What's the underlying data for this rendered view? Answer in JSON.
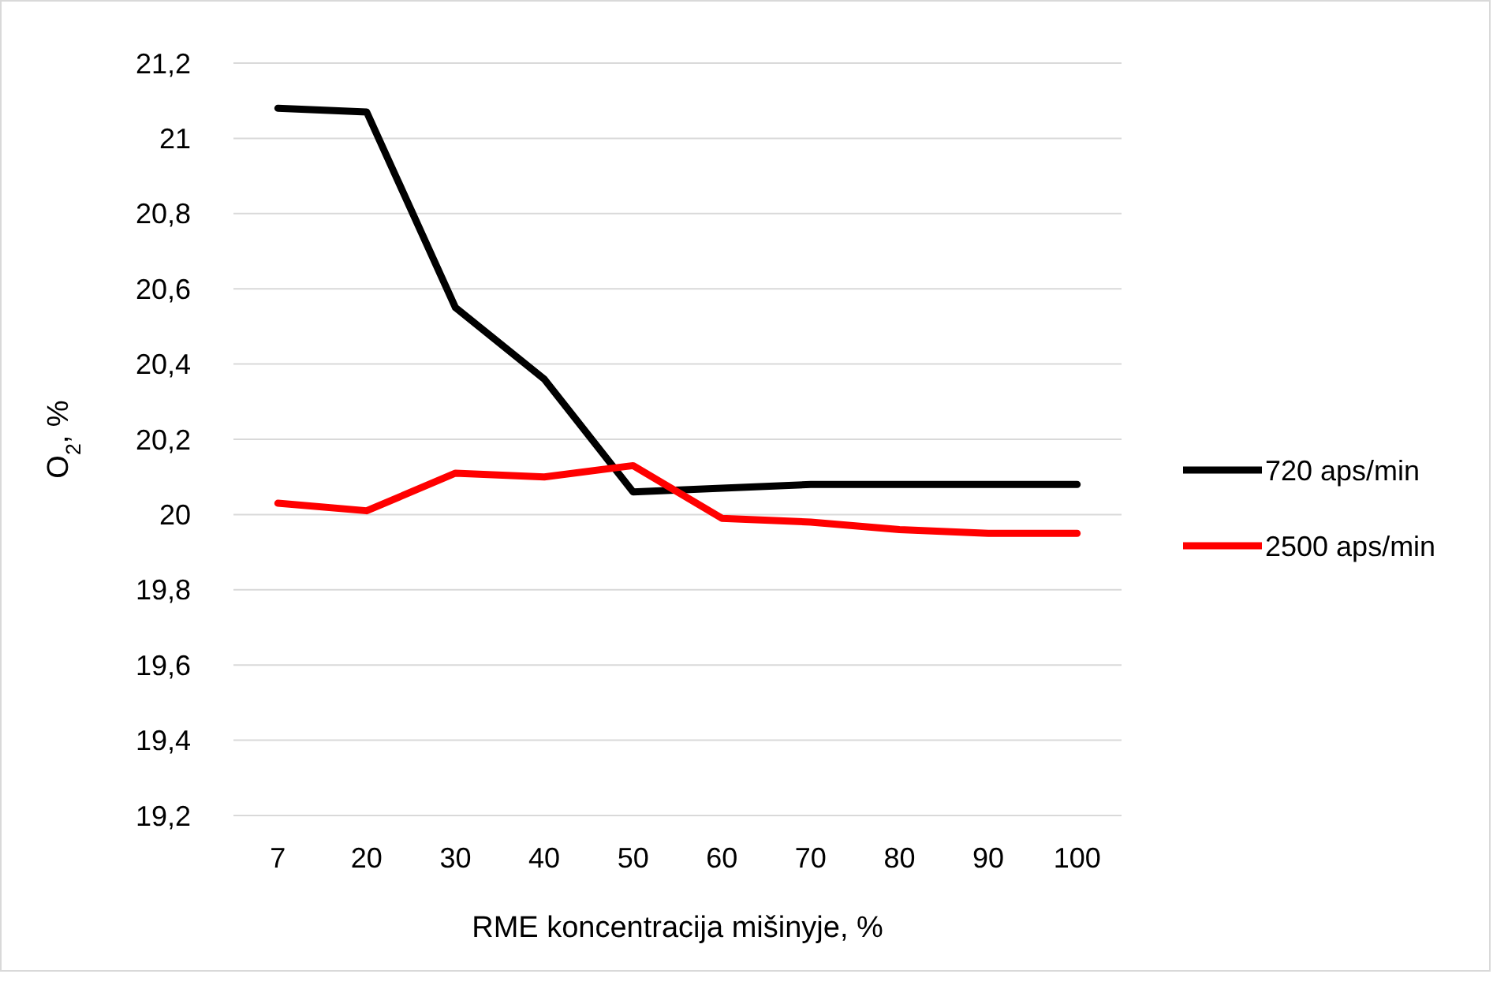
{
  "chart_data": {
    "type": "line",
    "xlabel": "RME koncentracija mišinyje, %",
    "ylabel": "O$_{2}$, %",
    "categories": [
      "7",
      "20",
      "30",
      "40",
      "50",
      "60",
      "70",
      "80",
      "90",
      "100"
    ],
    "series": [
      {
        "name": "720 aps/min",
        "color": "#000000",
        "values": [
          21.08,
          21.07,
          20.55,
          20.36,
          20.06,
          20.07,
          20.08,
          20.08,
          20.08,
          20.08
        ]
      },
      {
        "name": "2500 aps/min",
        "color": "#ff0000",
        "values": [
          20.03,
          20.01,
          20.11,
          20.1,
          20.13,
          19.99,
          19.98,
          19.96,
          19.95,
          19.95
        ]
      }
    ],
    "ylim": [
      19.2,
      21.2
    ],
    "yticks": [
      {
        "value": 19.2,
        "label": "19,2"
      },
      {
        "value": 19.4,
        "label": "19,4"
      },
      {
        "value": 19.6,
        "label": "19,6"
      },
      {
        "value": 19.8,
        "label": "19,8"
      },
      {
        "value": 20,
        "label": "20"
      },
      {
        "value": 20.2,
        "label": "20,2"
      },
      {
        "value": 20.4,
        "label": "20,4"
      },
      {
        "value": 20.6,
        "label": "20,6"
      },
      {
        "value": 20.8,
        "label": "20,8"
      },
      {
        "value": 21,
        "label": "21"
      },
      {
        "value": 21.2,
        "label": "21,2"
      }
    ],
    "grid": "y",
    "legend": "right",
    "marker": "none",
    "line_style": "solid"
  }
}
